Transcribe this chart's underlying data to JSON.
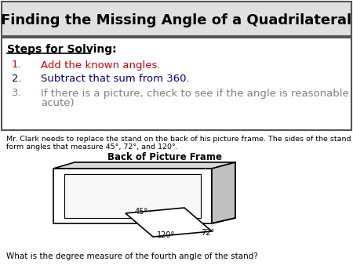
{
  "title": "Finding the Missing Angle of a Quadrilateral",
  "title_fontsize": 13,
  "steps_header": "Steps for Solving:",
  "steps": [
    "Add the known angles.",
    "Subtract that sum from 360.",
    "If there is a picture, check to see if the angle is reasonable. (obtuse, right,\nacute)"
  ],
  "step_color_1": "#cc0000",
  "step_color_2": "#000080",
  "step_color_3": "#808080",
  "problem_text_line1": "Mr. Clark needs to replace the stand on the back of his picture frame. The sides of the stand",
  "problem_text_line2": "form angles that measure 45°, 72°, and 120°.",
  "frame_title": "Back of Picture Frame",
  "question": "What is the degree measure of the fourth angle of the stand?",
  "bg_color": "#ffffff",
  "title_bg": "#e0e0e0"
}
